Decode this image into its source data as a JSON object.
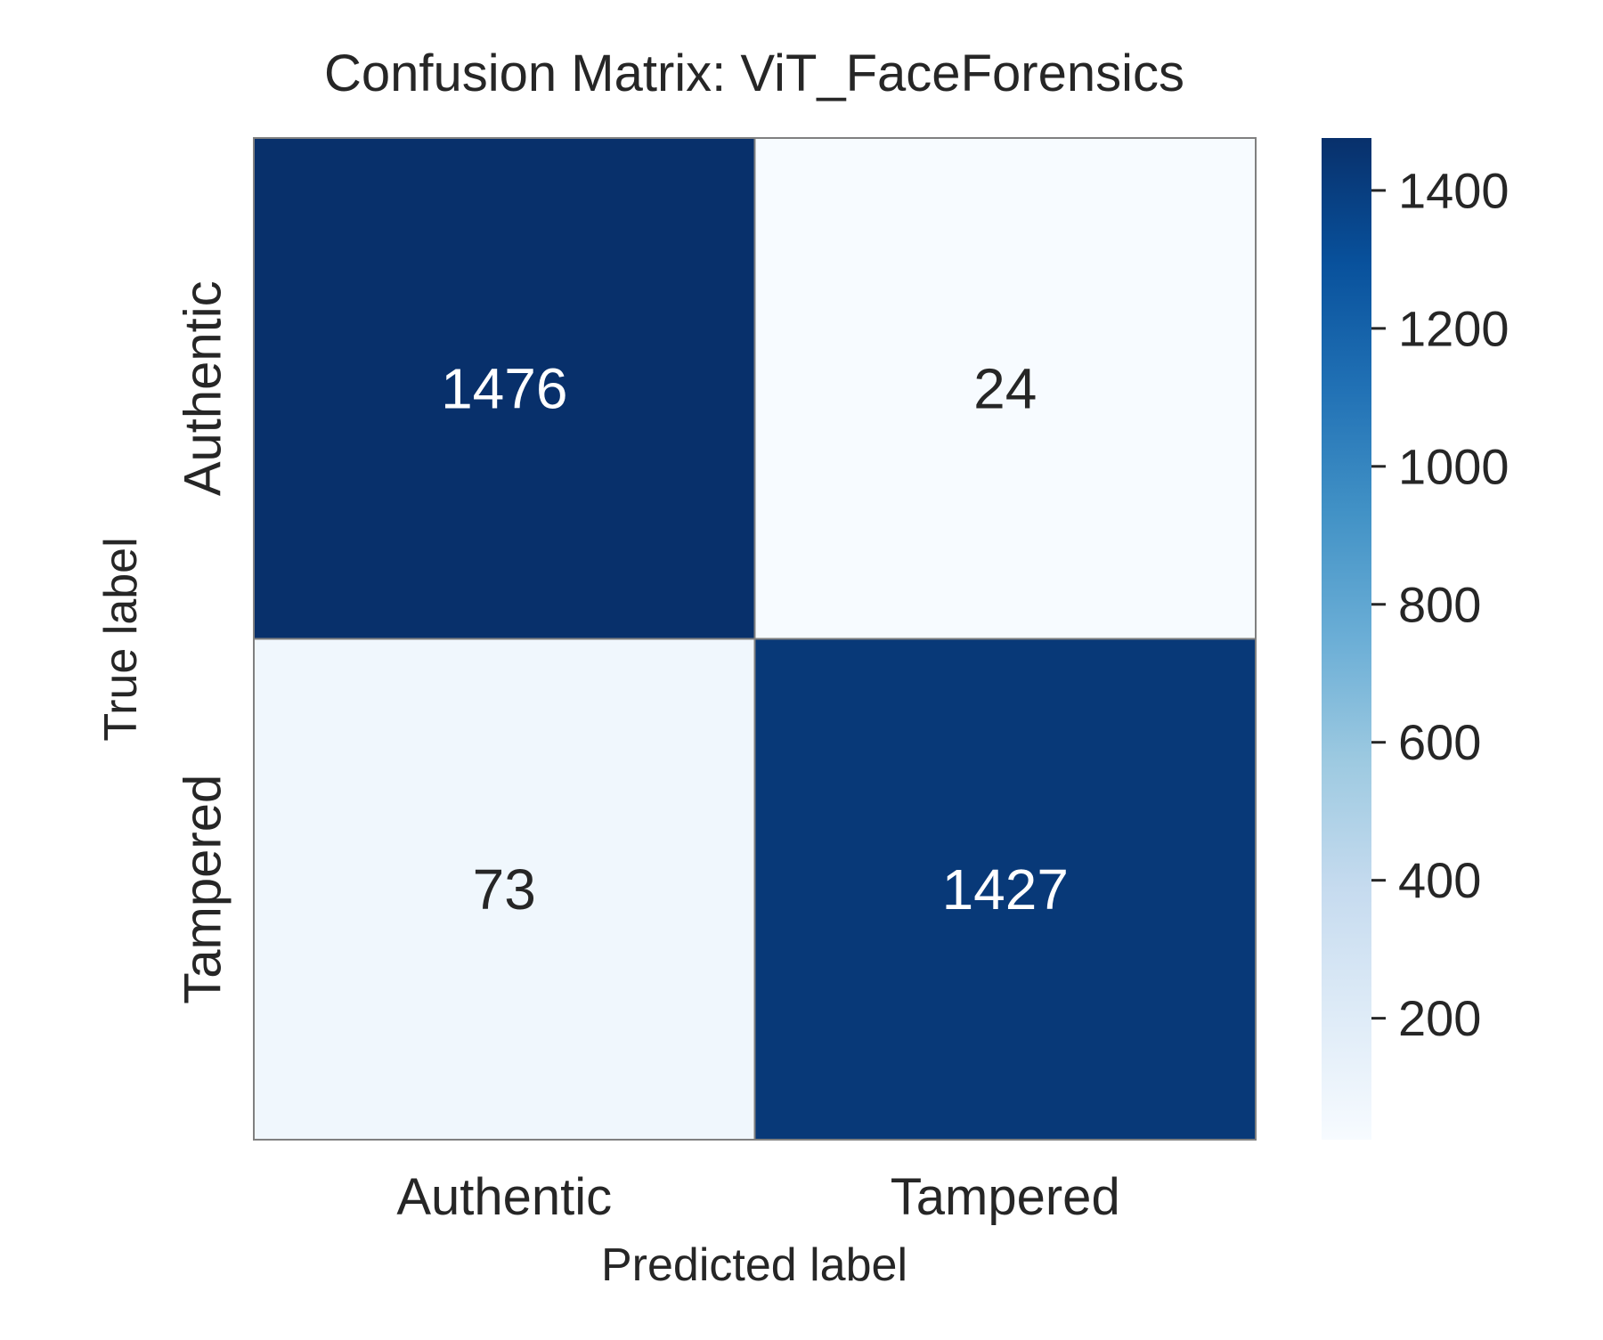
{
  "chart_data": {
    "type": "heatmap",
    "title": "Confusion Matrix: ViT_FaceForensics",
    "xlabel": "Predicted label",
    "ylabel": "True label",
    "x_categories": [
      "Authentic",
      "Tampered"
    ],
    "y_categories": [
      "Authentic",
      "Tampered"
    ],
    "matrix": [
      [
        1476,
        24
      ],
      [
        73,
        1427
      ]
    ],
    "colormap": "Blues",
    "vmin": 24,
    "vmax": 1476,
    "colorbar_ticks": [
      200,
      400,
      600,
      800,
      1000,
      1200,
      1400
    ],
    "grid": false,
    "colors": {
      "cell_border": "#808080",
      "text_dark": "#262626",
      "text_light": "#ffffff"
    }
  }
}
